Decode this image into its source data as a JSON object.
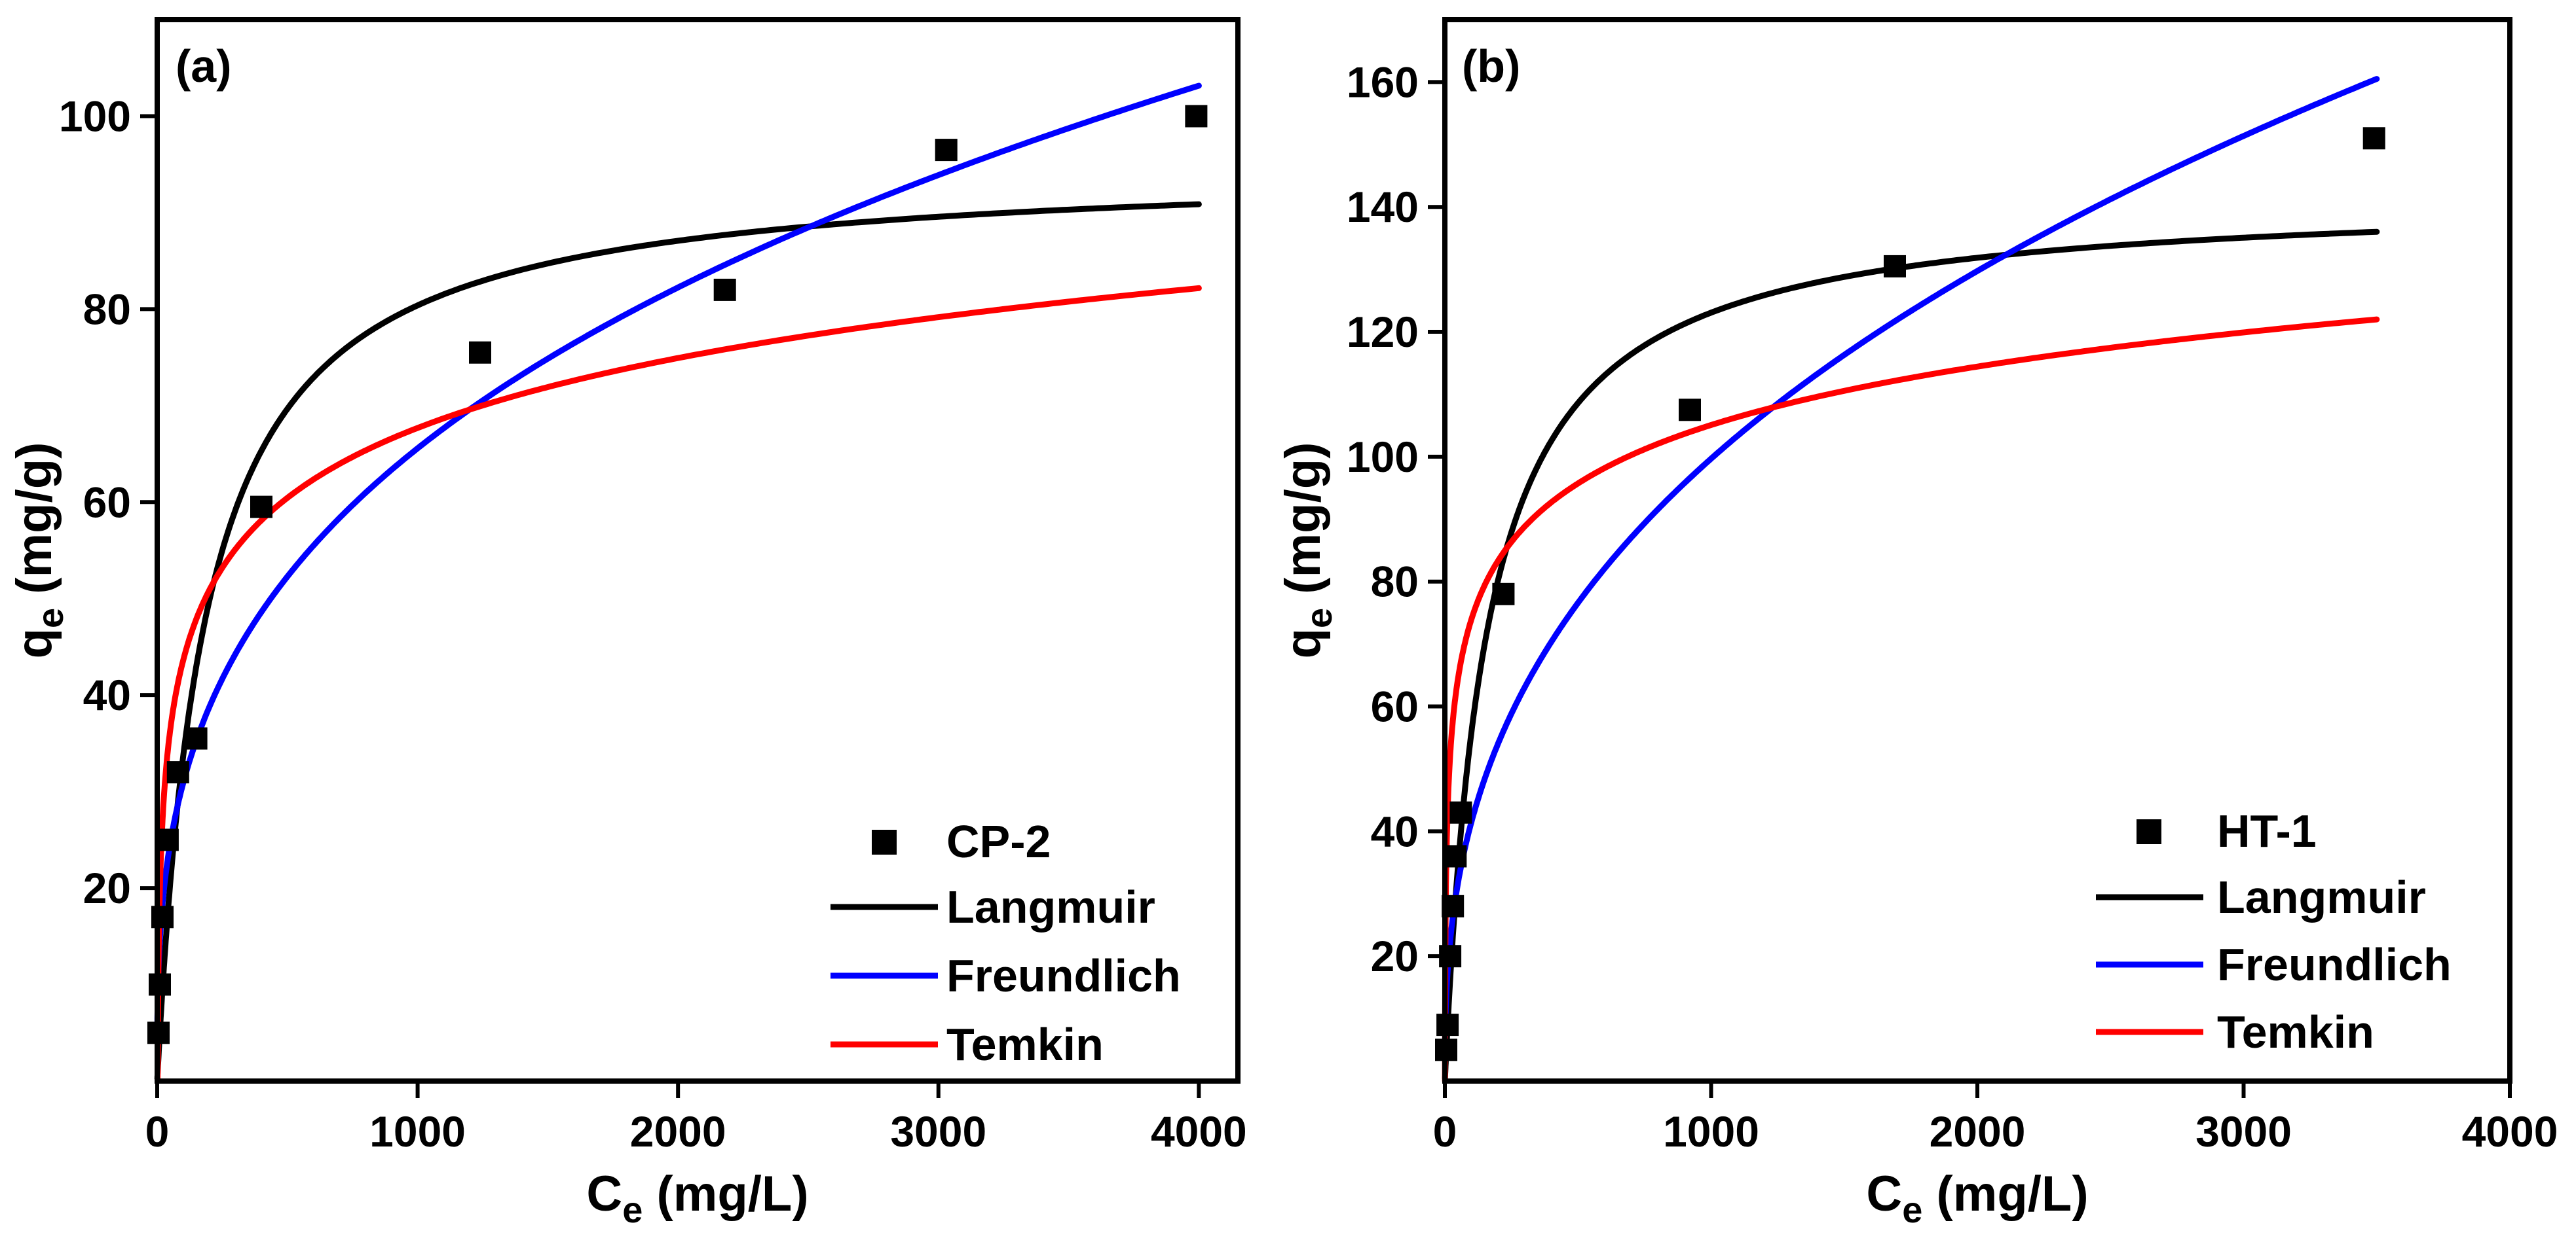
{
  "chart_data": [
    {
      "type": "scatter+line",
      "panel_label": "(a)",
      "xlabel": "C",
      "xlabel_sub": "e",
      "xlabel_unit": " (mg/L)",
      "ylabel": "q",
      "ylabel_sub": "e",
      "ylabel_unit": " (mg/g)",
      "xlim": [
        0,
        4150
      ],
      "ylim": [
        0,
        110
      ],
      "xticks": [
        0,
        1000,
        2000,
        3000,
        4000
      ],
      "yticks": [
        20,
        40,
        60,
        80,
        100
      ],
      "legend_position": "bottom-right",
      "scatter": {
        "name": "CP-2",
        "color": "#000000",
        "x": [
          5,
          10,
          20,
          40,
          80,
          150,
          400,
          1240,
          2180,
          3030,
          3990
        ],
        "y": [
          5,
          10,
          17,
          25,
          32,
          35.5,
          59.5,
          75.5,
          82,
          96.5,
          100
        ]
      },
      "series": [
        {
          "name": "Langmuir",
          "color": "#000000",
          "model": "langmuir",
          "params": {
            "qmax": 95,
            "KL": 0.0055
          },
          "x_max": 4000
        },
        {
          "name": "Freundlich",
          "color": "#0000ff",
          "model": "freundlich",
          "params": {
            "KF": 6.86,
            "n": 3.06
          },
          "x_max": 4000
        },
        {
          "name": "Temkin",
          "color": "#ff0000",
          "model": "temkin",
          "params": {
            "B": 10.45,
            "A": 0.65
          },
          "x_max": 4000
        }
      ]
    },
    {
      "type": "scatter+line",
      "panel_label": "(b)",
      "xlabel": "C",
      "xlabel_sub": "e",
      "xlabel_unit": " (mg/L)",
      "ylabel": "q",
      "ylabel_sub": "e",
      "ylabel_unit": " (mg/g)",
      "xlim": [
        0,
        4000
      ],
      "ylim": [
        0,
        170
      ],
      "xticks": [
        0,
        1000,
        2000,
        3000,
        4000
      ],
      "yticks": [
        20,
        40,
        60,
        80,
        100,
        120,
        140,
        160
      ],
      "legend_position": "bottom-right",
      "scatter": {
        "name": "HT-1",
        "color": "#000000",
        "x": [
          5,
          10,
          20,
          30,
          40,
          60,
          220,
          920,
          1690,
          3490
        ],
        "y": [
          5,
          9,
          20,
          28,
          36,
          43,
          78,
          107.5,
          130.5,
          151
        ]
      },
      "series": [
        {
          "name": "Langmuir",
          "color": "#000000",
          "model": "langmuir",
          "params": {
            "qmax": 142,
            "KL": 0.0065
          },
          "x_max": 3500
        },
        {
          "name": "Freundlich",
          "color": "#0000ff",
          "model": "freundlich",
          "params": {
            "KF": 7.21,
            "n": 2.63
          },
          "x_max": 3500
        },
        {
          "name": "Temkin",
          "color": "#ff0000",
          "model": "temkin",
          "params": {
            "B": 13.5,
            "A": 2.4
          },
          "x_max": 3500
        }
      ]
    }
  ]
}
